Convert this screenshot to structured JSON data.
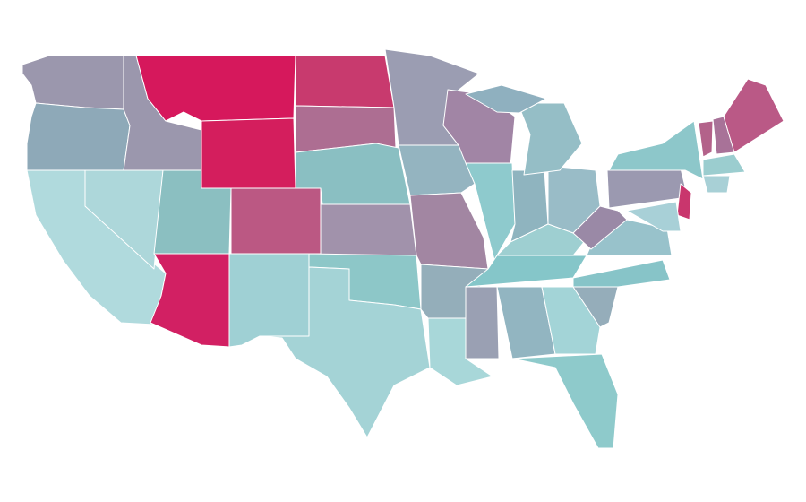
{
  "map": {
    "background": "#ffffff",
    "border": "#ffffff",
    "fills": [
      "#9b97ad",
      "#8ea9b8",
      "#b0dadd",
      "#add7da",
      "#9b97ad",
      "#d6185c",
      "#d41e5d",
      "#8bbfc1",
      "#d22063",
      "#bb5883",
      "#9fd0d4",
      "#c83a6e",
      "#ad6e92",
      "#8abfc2",
      "#a192ab",
      "#8dc7c8",
      "#a4d3d6",
      "#9b9db2",
      "#94b4c0",
      "#a286a2",
      "#94aeba",
      "#a8d7d9",
      "#a185a5",
      "#8ecacd",
      "#8fb4bf",
      "#92b5c1",
      "#9aa0b3",
      "#99bcc7",
      "#95bec6",
      "#a3d4d7",
      "#8ecacb",
      "#9ecfd1",
      "#85c6c9",
      "#95adba",
      "#87c4c8",
      "#98c2cb",
      "#9a89a6",
      "#9b99b0",
      "#8dc7ca",
      "#b3628a",
      "#a87298",
      "#ba5986",
      "#9bcdcf",
      "#a8d0d6",
      "#c9366d",
      "#a8d0d7",
      "#8fb0bf"
    ]
  }
}
